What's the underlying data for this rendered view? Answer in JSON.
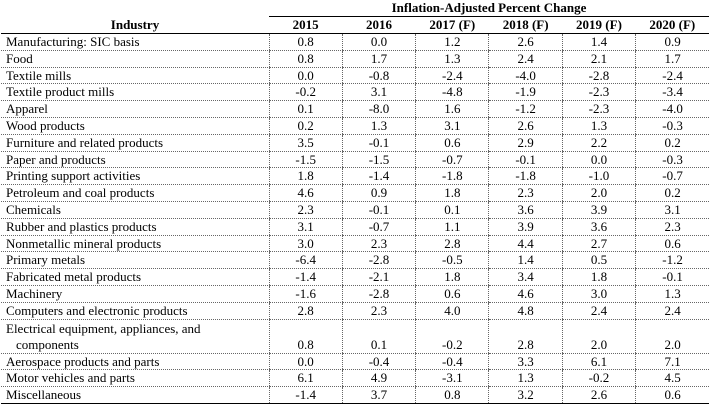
{
  "table": {
    "group_header": "Inflation-Adjusted Percent Change",
    "industry_header": "Industry",
    "years": [
      "2015",
      "2016",
      "2017 (F)",
      "2018 (F)",
      "2019 (F)",
      "2020 (F)"
    ],
    "rows": [
      {
        "industry": "Manufacturing: SIC basis",
        "values": [
          "0.8",
          "0.0",
          "1.2",
          "2.6",
          "1.4",
          "0.9"
        ]
      },
      {
        "industry": "Food",
        "values": [
          "0.8",
          "1.7",
          "1.3",
          "2.4",
          "2.1",
          "1.7"
        ]
      },
      {
        "industry": "Textile mills",
        "values": [
          "0.0",
          "-0.8",
          "-2.4",
          "-4.0",
          "-2.8",
          "-2.4"
        ]
      },
      {
        "industry": "Textile product mills",
        "values": [
          "-0.2",
          "3.1",
          "-4.8",
          "-1.9",
          "-2.3",
          "-3.4"
        ]
      },
      {
        "industry": "Apparel",
        "values": [
          "0.1",
          "-8.0",
          "1.6",
          "-1.2",
          "-2.3",
          "-4.0"
        ]
      },
      {
        "industry": "Wood products",
        "values": [
          "0.2",
          "1.3",
          "3.1",
          "2.6",
          "1.3",
          "-0.3"
        ]
      },
      {
        "industry": "Furniture and related products",
        "values": [
          "3.5",
          "-0.1",
          "0.6",
          "2.9",
          "2.2",
          "0.2"
        ]
      },
      {
        "industry": "Paper and products",
        "values": [
          "-1.5",
          "-1.5",
          "-0.7",
          "-0.1",
          "0.0",
          "-0.3"
        ]
      },
      {
        "industry": "Printing support activities",
        "values": [
          "1.8",
          "-1.4",
          "-1.8",
          "-1.8",
          "-1.0",
          "-0.7"
        ]
      },
      {
        "industry": "Petroleum and coal products",
        "values": [
          "4.6",
          "0.9",
          "1.8",
          "2.3",
          "2.0",
          "0.2"
        ]
      },
      {
        "industry": "Chemicals",
        "values": [
          "2.3",
          "-0.1",
          "0.1",
          "3.6",
          "3.9",
          "3.1"
        ]
      },
      {
        "industry": "Rubber and plastics products",
        "values": [
          "3.1",
          "-0.7",
          "1.1",
          "3.9",
          "3.6",
          "2.3"
        ]
      },
      {
        "industry": "Nonmetallic mineral products",
        "values": [
          "3.0",
          "2.3",
          "2.8",
          "4.4",
          "2.7",
          "0.6"
        ]
      },
      {
        "industry": "Primary metals",
        "values": [
          "-6.4",
          "-2.8",
          "-0.5",
          "1.4",
          "0.5",
          "-1.2"
        ]
      },
      {
        "industry": "Fabricated metal products",
        "values": [
          "-1.4",
          "-2.1",
          "1.8",
          "3.4",
          "1.8",
          "-0.1"
        ]
      },
      {
        "industry": "Machinery",
        "values": [
          "-1.6",
          "-2.8",
          "0.6",
          "4.6",
          "3.0",
          "1.3"
        ]
      },
      {
        "industry": "Computers and electronic products",
        "values": [
          "2.8",
          "2.3",
          "4.0",
          "4.8",
          "2.4",
          "2.4"
        ]
      },
      {
        "industry": "Electrical equipment, appliances, and",
        "industry_line2": "components",
        "values": [
          "0.8",
          "0.1",
          "-0.2",
          "2.8",
          "2.0",
          "2.0"
        ]
      },
      {
        "industry": "Aerospace products and parts",
        "values": [
          "0.0",
          "-0.4",
          "-0.4",
          "3.3",
          "6.1",
          "7.1"
        ]
      },
      {
        "industry": "Motor vehicles and parts",
        "values": [
          "6.1",
          "4.9",
          "-3.1",
          "1.3",
          "-0.2",
          "4.5"
        ]
      },
      {
        "industry": "Miscellaneous",
        "values": [
          "-1.4",
          "3.7",
          "0.8",
          "3.2",
          "2.6",
          "0.6"
        ]
      }
    ]
  }
}
